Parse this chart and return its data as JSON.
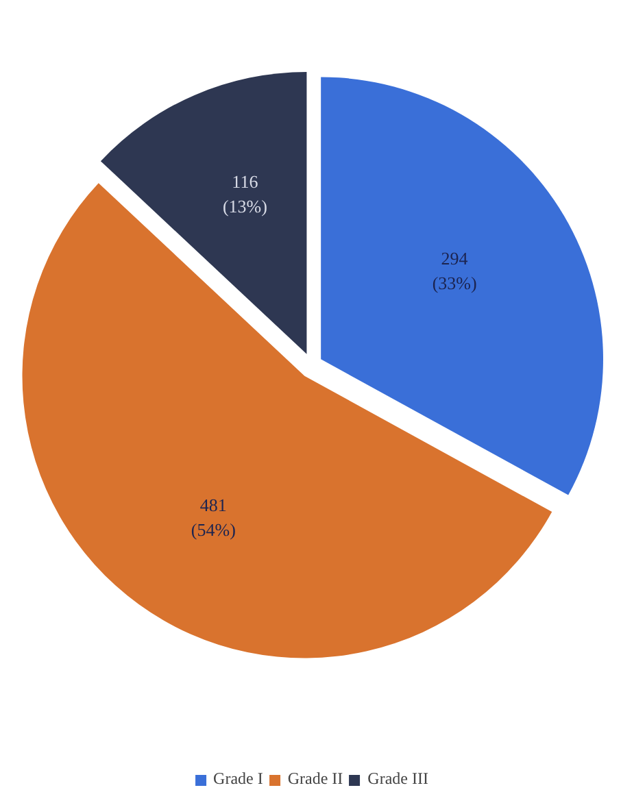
{
  "chart_data": {
    "type": "pie",
    "categories": [
      "Grade I",
      "Grade II",
      "Grade III"
    ],
    "values": [
      294,
      481,
      116
    ],
    "value_labels": [
      "294\n(33%)",
      "481\n(54%)",
      "116\n(13%)"
    ],
    "colors": [
      "#3a6fd8",
      "#d9732e",
      "#2e3752"
    ],
    "legend": "bottom"
  }
}
